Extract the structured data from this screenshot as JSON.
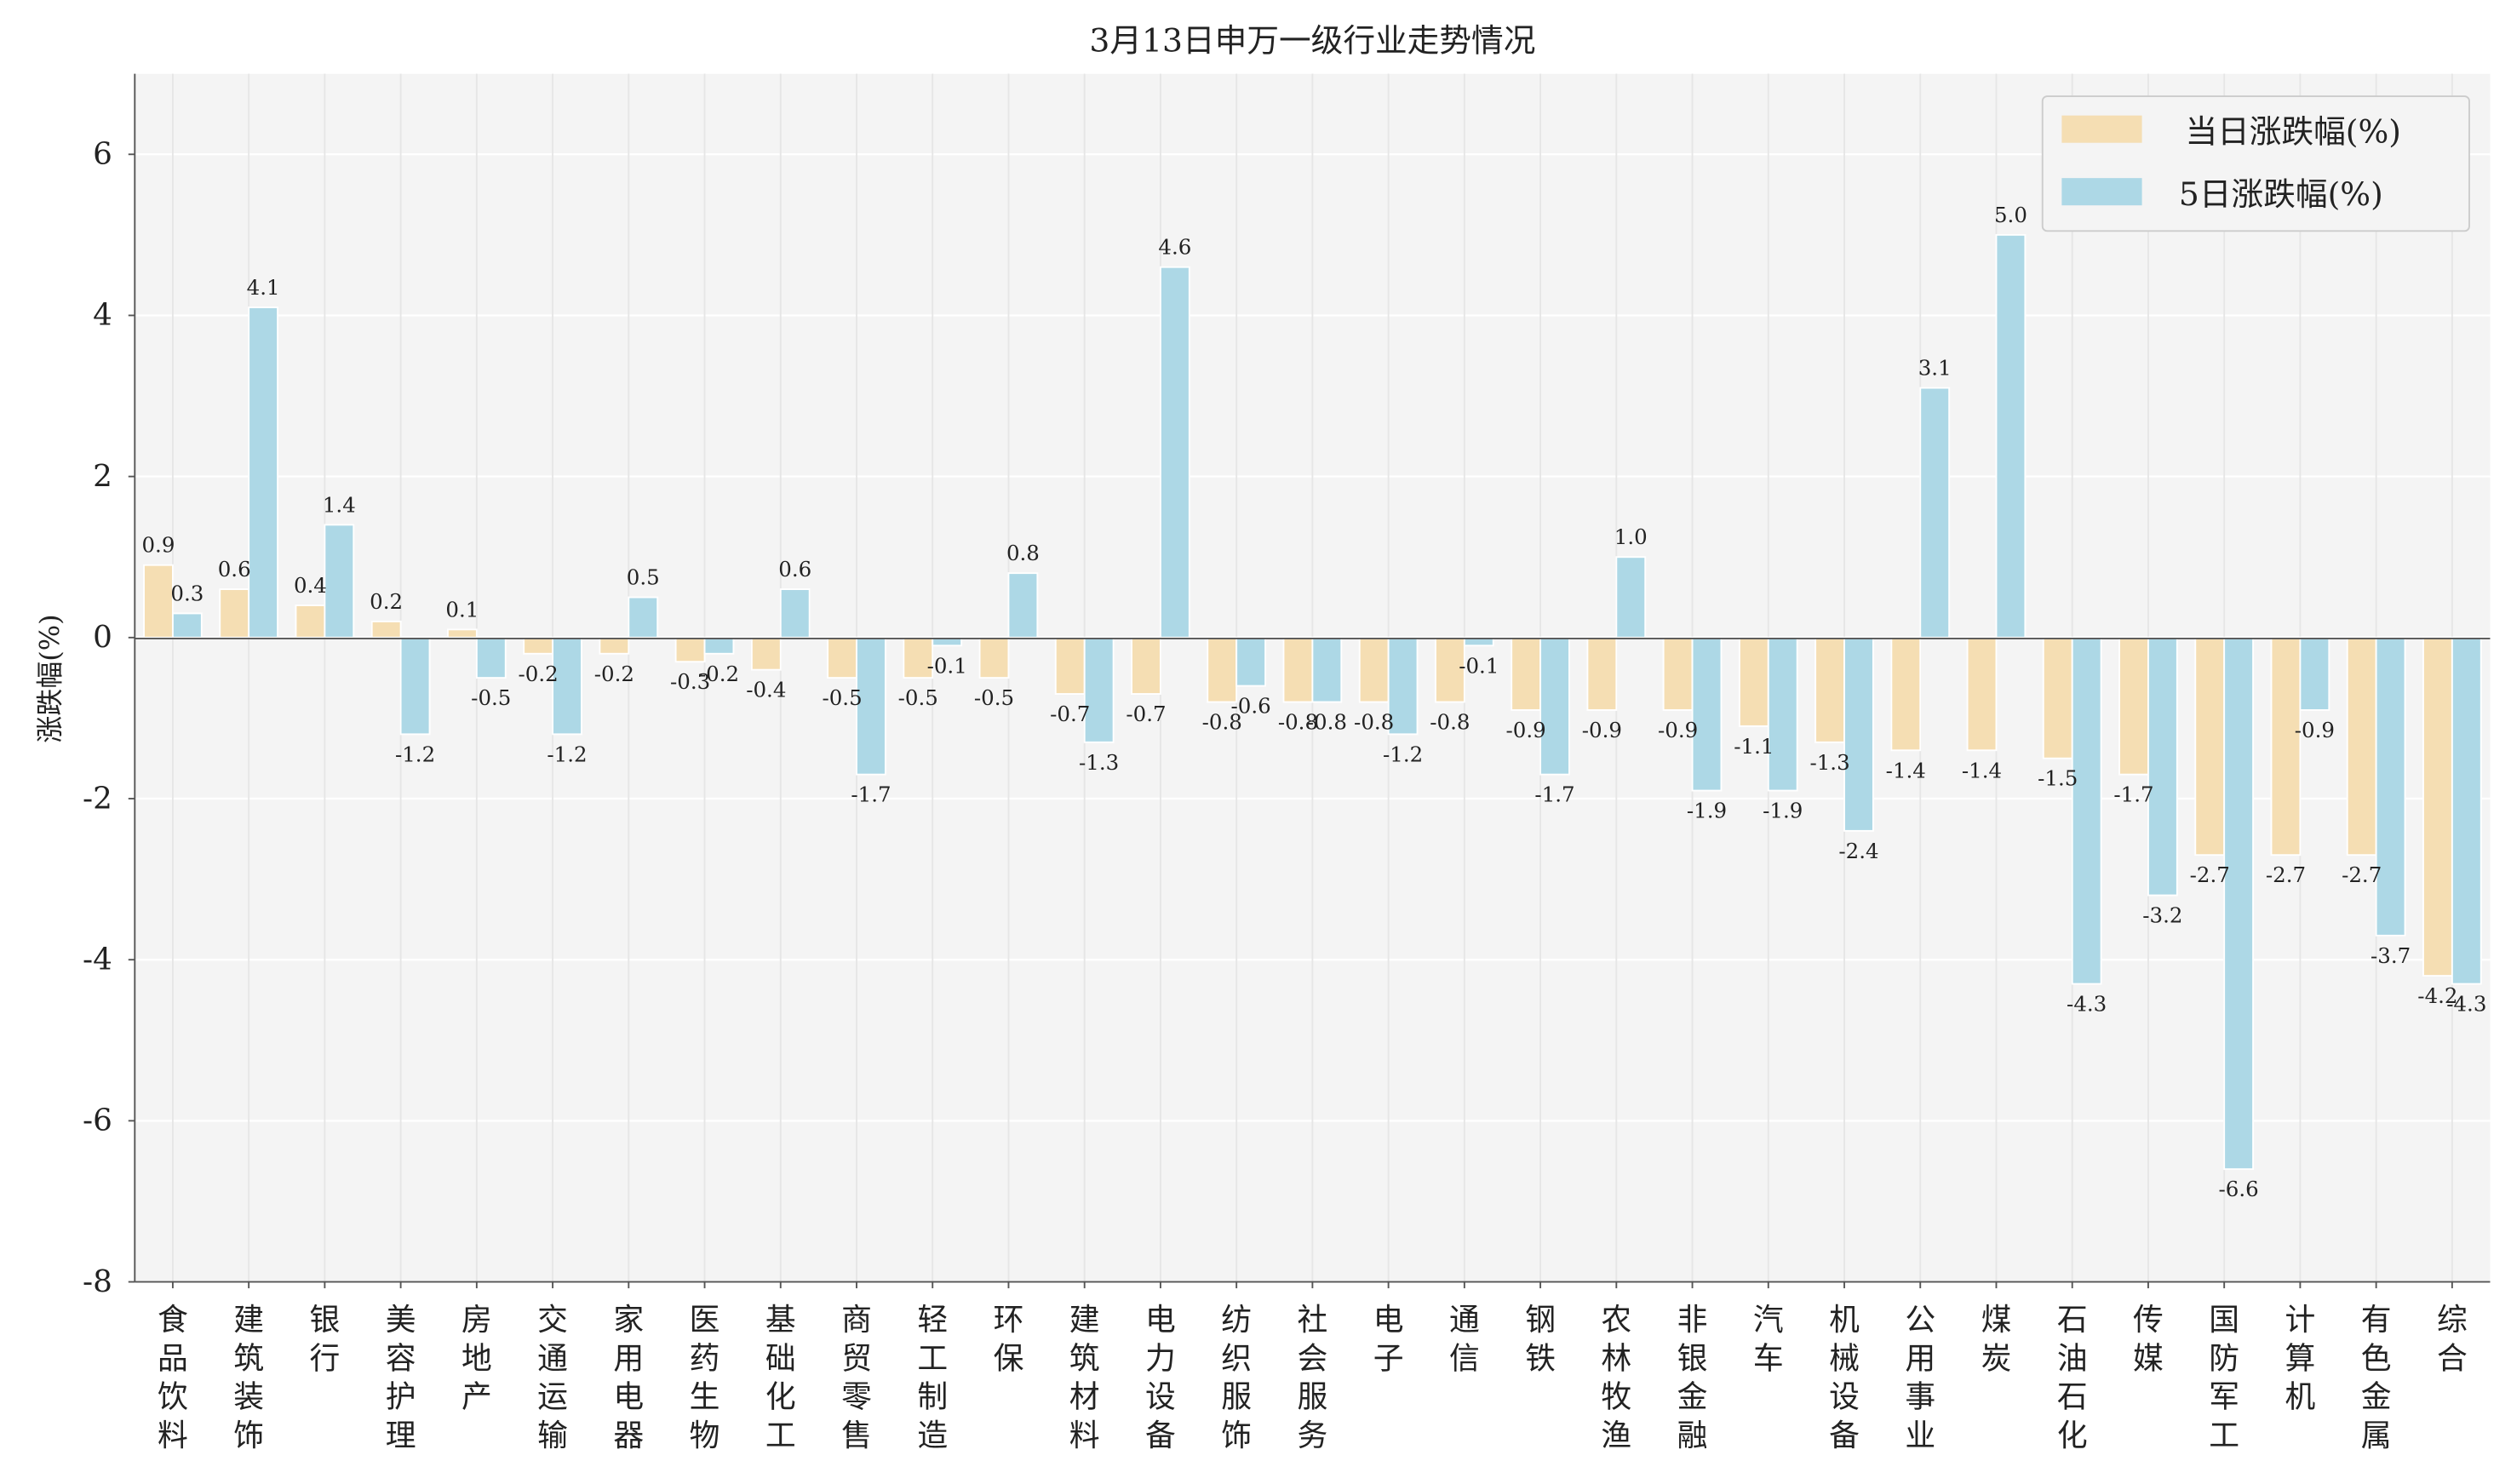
{
  "chart_data": {
    "type": "bar",
    "title": "3月13日申万一级行业走势情况",
    "xlabel": "",
    "ylabel": "涨跌幅(%)",
    "ylim": [
      -8,
      7
    ],
    "yticks": [
      -8,
      -6,
      -4,
      -2,
      0,
      2,
      4,
      6
    ],
    "grid": true,
    "legend_position": "top-right",
    "categories": [
      "食品饮料",
      "建筑装饰",
      "银行",
      "美容护理",
      "房地产",
      "交通运输",
      "家用电器",
      "医药生物",
      "基础化工",
      "商贸零售",
      "轻工制造",
      "环保",
      "建筑材料",
      "电力设备",
      "纺织服饰",
      "社会服务",
      "电子",
      "通信",
      "钢铁",
      "农林牧渔",
      "非银金融",
      "汽车",
      "机械设备",
      "公用事业",
      "煤炭",
      "石油石化",
      "传媒",
      "国防军工",
      "计算机",
      "有色金属",
      "综合"
    ],
    "series": [
      {
        "name": "当日涨跌幅(%)",
        "color": "#f5deb3",
        "values": [
          0.9,
          0.6,
          0.4,
          0.2,
          0.1,
          -0.2,
          -0.2,
          -0.3,
          -0.4,
          -0.5,
          -0.5,
          -0.5,
          -0.7,
          -0.7,
          -0.8,
          -0.8,
          -0.8,
          -0.8,
          -0.9,
          -0.9,
          -0.9,
          -1.1,
          -1.3,
          -1.4,
          -1.4,
          -1.5,
          -1.7,
          -2.7,
          -2.7,
          -2.7,
          -4.2
        ]
      },
      {
        "name": "5日涨跌幅(%)",
        "color": "#add8e6",
        "values": [
          0.3,
          4.1,
          1.4,
          -1.2,
          -0.5,
          -1.2,
          0.5,
          -0.2,
          0.6,
          -1.7,
          -0.1,
          0.8,
          -1.3,
          4.6,
          -0.6,
          -0.8,
          -1.2,
          -0.1,
          -1.7,
          1.0,
          -1.9,
          -1.9,
          -2.4,
          3.1,
          5.0,
          -4.3,
          -3.2,
          -6.6,
          -0.9,
          -3.7,
          -4.3
        ]
      }
    ]
  }
}
